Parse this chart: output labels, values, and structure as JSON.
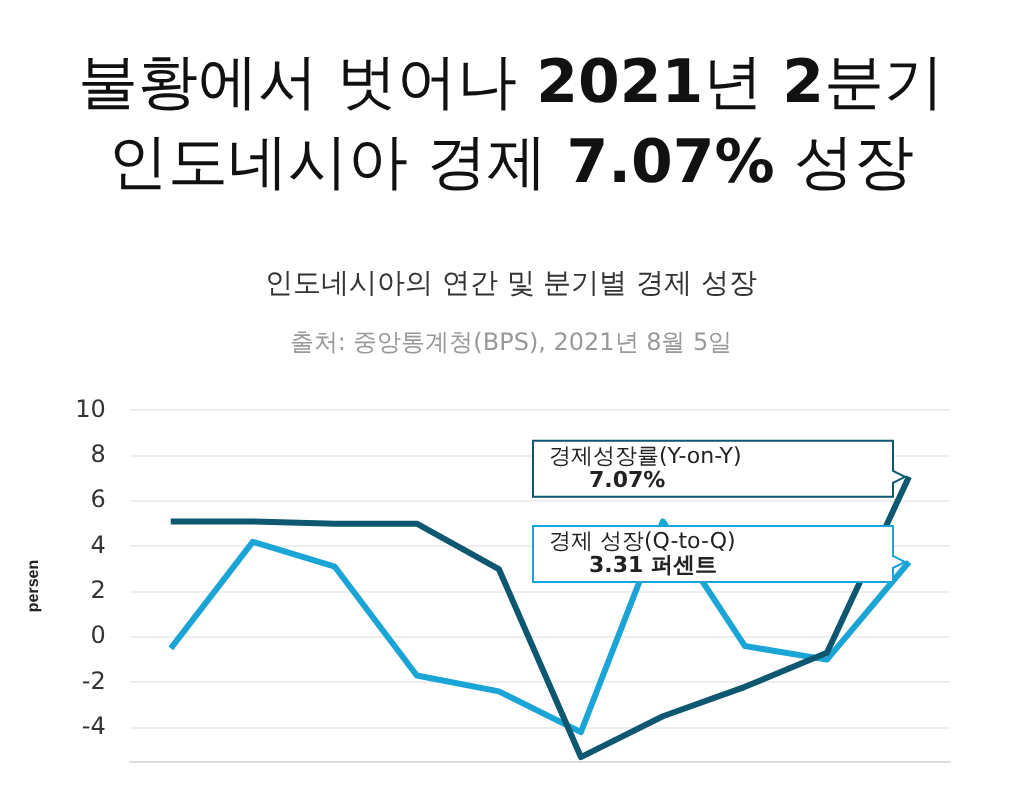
{
  "chart_data": {
    "type": "line",
    "title": "불황에서 벗어나 2021년 2분기\n인도네시아 경제 7.07% 성장",
    "subtitle": "인도네시아의 연간 및 분기별 경제 성장",
    "ylabel": "persen",
    "annotations": [
      "출처: 중앙통계청(BPS), 2021년 8월 5일",
      "경제성장률(Y-on-Y)\n7.07%",
      "경제 성장(Q-to-Q)\n3.31 퍼센트"
    ],
    "categories": [
      null,
      null,
      null,
      null,
      null,
      null,
      null,
      null,
      null,
      null
    ],
    "series": [
      {
        "color": "#0d5770",
        "values": [
          5.1,
          5.1,
          5.0,
          5.0,
          3.0,
          -5.3,
          -3.5,
          -2.2,
          -0.7,
          7.07
        ]
      },
      {
        "color": "#1aa5d6",
        "values": [
          -0.5,
          4.2,
          3.1,
          -1.7,
          -2.4,
          -4.2,
          5.1,
          -0.4,
          -1.0,
          3.31
        ]
      }
    ],
    "ylim": [
      -5.5,
      10
    ],
    "yticks": [
      -4,
      -2,
      0,
      2,
      4,
      6,
      8,
      10
    ],
    "grid": "y",
    "tick_labels": "y",
    "legend": false,
    "marker": "none",
    "line_style": "solid"
  }
}
